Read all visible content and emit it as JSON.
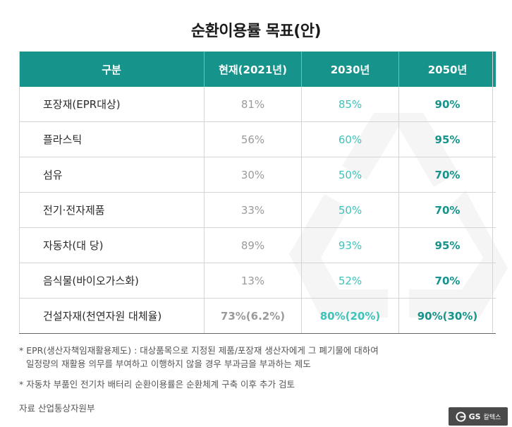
{
  "title": "순환이용률 목표(안)",
  "table": {
    "headers": [
      "구분",
      "현재(2021년)",
      "2030년",
      "2050년"
    ],
    "rows": [
      {
        "category": "포장재(EPR대상)",
        "current": "81%",
        "y2030": "85%",
        "y2050": "90%"
      },
      {
        "category": "플라스틱",
        "current": "56%",
        "y2030": "60%",
        "y2050": "95%"
      },
      {
        "category": "섬유",
        "current": "30%",
        "y2030": "50%",
        "y2050": "70%"
      },
      {
        "category": "전기·전자제품",
        "current": "33%",
        "y2030": "50%",
        "y2050": "70%"
      },
      {
        "category": "자동차(대 당)",
        "current": "89%",
        "y2030": "93%",
        "y2050": "95%"
      },
      {
        "category": "음식물(바이오가스화)",
        "current": "13%",
        "y2030": "52%",
        "y2050": "70%"
      },
      {
        "category": "건설자재(천연자원 대체율)",
        "current": "73%(6.2%)",
        "y2030": "80%(20%)",
        "y2050": "90%(30%)"
      }
    ]
  },
  "notes": {
    "note1_line1": "* EPR(생산자책임재활용제도) : 대상품목으로 지정된 제품/포장재 생산자에게 그 폐기물에 대하여",
    "note1_line2": "일정량의 재활용 의무를 부여하고 이행하지 않을 경우 부과금을 부과하는 제도",
    "note2": "* 자동차 부품인 전기차 배터리 순환이용률은 순환체계 구축 이후 추가 검토"
  },
  "source": "자료  산업통상자원부",
  "logo": {
    "brand": "GS",
    "sub": "칼텍스"
  },
  "colors": {
    "header_bg": "#16938b",
    "value_2030": "#3ec3ba",
    "value_2050": "#16938b",
    "current": "#9a9a9a"
  },
  "icons": {
    "watermark": "recycle-icon",
    "logo": "gs-logo-icon"
  }
}
